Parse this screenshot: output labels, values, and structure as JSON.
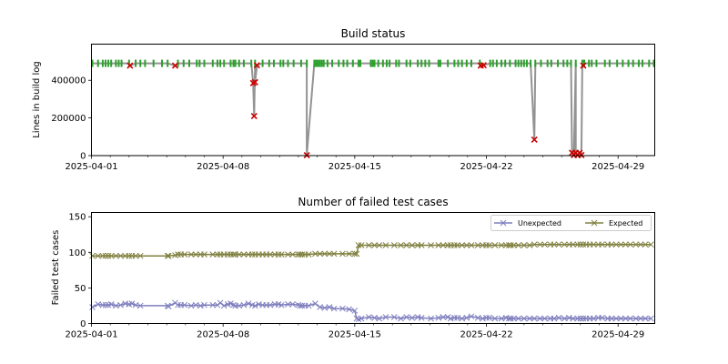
{
  "chart_data": [
    {
      "type": "line",
      "title": "Build status",
      "xlabel": "",
      "ylabel": "Lines in build log",
      "xlim_days_from_start": [
        0,
        29.95
      ],
      "ylim": [
        0,
        592000
      ],
      "start_date": "2025-04-01",
      "x_tick_labels": [
        "2025-04-01",
        "2025-04-08",
        "2025-04-15",
        "2025-04-22",
        "2025-04-29"
      ],
      "x_tick_days": [
        0,
        7,
        14,
        21,
        28
      ],
      "y_tick_labels": [
        "0",
        "200000",
        "400000"
      ],
      "y_tick_values": [
        0,
        200000,
        400000
      ],
      "baseline_lines": 490000,
      "colors": {
        "line": "#808080",
        "success": "#2ca02c",
        "failure": "#cc0000"
      },
      "success_days": [
        0.05,
        0.35,
        0.6,
        0.75,
        0.9,
        1.05,
        1.3,
        1.45,
        1.6,
        2.0,
        2.35,
        2.6,
        2.85,
        3.3,
        3.75,
        4.05,
        4.6,
        4.9,
        5.2,
        5.6,
        5.75,
        6.0,
        6.45,
        6.7,
        6.85,
        7.05,
        7.4,
        7.55,
        7.65,
        7.85,
        8.1,
        8.5,
        8.7,
        9.1,
        9.45,
        9.7,
        10.05,
        10.2,
        10.45,
        10.75,
        11.15,
        11.45,
        11.85,
        11.95,
        12.05,
        12.15,
        12.25,
        12.35,
        12.55,
        12.8,
        13.15,
        13.4,
        13.6,
        13.9,
        14.2,
        14.3,
        14.85,
        14.95,
        15.05,
        15.25,
        15.5,
        15.7,
        15.85,
        16.2,
        16.35,
        16.75,
        16.95,
        17.35,
        17.55,
        17.75,
        17.95,
        18.45,
        18.55,
        18.95,
        19.3,
        19.5,
        19.7,
        19.95,
        20.2,
        20.65,
        21.2,
        21.35,
        21.55,
        21.8,
        22.0,
        22.25,
        22.55,
        22.7,
        22.85,
        23.0,
        23.15,
        23.35,
        23.6,
        23.9,
        24.25,
        24.45,
        24.8,
        25.1,
        25.3,
        25.5,
        25.75,
        26.1,
        26.2,
        26.45,
        26.6,
        26.85,
        27.3,
        27.55,
        27.95,
        28.25,
        28.55,
        28.8,
        29.1,
        29.3,
        29.65,
        29.9
      ],
      "failures": [
        {
          "day": 2.05,
          "lines": 478000
        },
        {
          "day": 4.45,
          "lines": 478000
        },
        {
          "day": 8.6,
          "lines": 385000
        },
        {
          "day": 8.65,
          "lines": 210000
        },
        {
          "day": 8.7,
          "lines": 390000
        },
        {
          "day": 8.8,
          "lines": 480000
        },
        {
          "day": 11.45,
          "lines": 2000
        },
        {
          "day": 20.7,
          "lines": 478000
        },
        {
          "day": 20.85,
          "lines": 480000
        },
        {
          "day": 23.55,
          "lines": 85000
        },
        {
          "day": 25.55,
          "lines": 15000
        },
        {
          "day": 25.65,
          "lines": 3000
        },
        {
          "day": 25.75,
          "lines": 15000
        },
        {
          "day": 25.85,
          "lines": 3000
        },
        {
          "day": 25.95,
          "lines": 15000
        },
        {
          "day": 26.05,
          "lines": 3000
        },
        {
          "day": 26.15,
          "lines": 478000
        }
      ]
    },
    {
      "type": "line",
      "title": "Number of failed test cases",
      "xlabel": "",
      "ylabel": "Failed test cases",
      "xlim_days_from_start": [
        0,
        29.95
      ],
      "ylim": [
        0,
        156
      ],
      "start_date": "2025-04-01",
      "x_tick_labels": [
        "2025-04-01",
        "2025-04-08",
        "2025-04-15",
        "2025-04-22",
        "2025-04-29"
      ],
      "x_tick_days": [
        0,
        7,
        14,
        21,
        28
      ],
      "y_tick_labels": [
        "0",
        "50",
        "100",
        "150"
      ],
      "y_tick_values": [
        0,
        50,
        100,
        150
      ],
      "legend_position": "top-right",
      "series": [
        {
          "name": "Unexpected",
          "color": "#7f7fbf",
          "x": [
            0.05,
            0.35,
            0.6,
            0.75,
            0.9,
            1.05,
            1.3,
            1.55,
            1.8,
            2.0,
            2.15,
            2.35,
            2.6,
            4.05,
            4.1,
            4.45,
            4.6,
            4.75,
            4.95,
            5.3,
            5.55,
            5.8,
            6.0,
            6.45,
            6.7,
            6.85,
            7.05,
            7.25,
            7.4,
            7.55,
            7.65,
            7.85,
            8.1,
            8.35,
            8.55,
            8.7,
            8.9,
            9.1,
            9.3,
            9.5,
            9.75,
            9.95,
            10.1,
            10.45,
            10.7,
            11.0,
            11.1,
            11.2,
            11.35,
            11.55,
            11.9,
            12.15,
            12.4,
            12.65,
            12.9,
            13.35,
            13.7,
            14.0,
            14.1,
            14.2,
            14.35,
            14.75,
            15.05,
            15.3,
            15.65,
            16.1,
            16.45,
            16.75,
            17.05,
            17.35,
            17.55,
            18.05,
            18.45,
            18.7,
            18.95,
            19.1,
            19.3,
            19.45,
            19.7,
            19.95,
            20.2,
            20.55,
            20.8,
            21.0,
            21.15,
            21.45,
            21.8,
            22.05,
            22.2,
            22.3,
            22.45,
            22.7,
            23.0,
            23.3,
            23.55,
            23.85,
            24.1,
            24.4,
            24.6,
            24.85,
            25.15,
            25.4,
            25.6,
            25.85,
            26.0,
            26.15,
            26.3,
            26.5,
            26.7,
            26.95,
            27.15,
            27.45,
            27.65,
            27.9,
            28.15,
            28.4,
            28.65,
            28.95,
            29.2,
            29.45,
            29.75
          ],
          "y": [
            23,
            27,
            26,
            26,
            26,
            27,
            25,
            26,
            28,
            27,
            28,
            26,
            25,
            25,
            24,
            29,
            26,
            26,
            26,
            25,
            26,
            25,
            26,
            26,
            26,
            29,
            25,
            27,
            28,
            26,
            25,
            25,
            26,
            28,
            26,
            25,
            27,
            26,
            26,
            26,
            27,
            27,
            26,
            27,
            27,
            26,
            25,
            25,
            25,
            25,
            28,
            23,
            22,
            23,
            21,
            21,
            20,
            18,
            7,
            6,
            7,
            9,
            8,
            7,
            9,
            9,
            7,
            9,
            8,
            9,
            8,
            7,
            8,
            9,
            9,
            7,
            8,
            8,
            7,
            8,
            10,
            8,
            7,
            8,
            8,
            7,
            7,
            8,
            7,
            7,
            7,
            7,
            7,
            7,
            7,
            7,
            7,
            7,
            7,
            8,
            7,
            8,
            7,
            7,
            7,
            7,
            7,
            7,
            7,
            8,
            8,
            7,
            7,
            7,
            7,
            7,
            7,
            7,
            7,
            7,
            7
          ],
          "marker": "x"
        },
        {
          "name": "Expected",
          "color": "#808040",
          "x": [
            0.05,
            0.35,
            0.6,
            0.75,
            0.9,
            1.05,
            1.3,
            1.55,
            1.8,
            2.0,
            2.15,
            2.35,
            2.6,
            4.05,
            4.1,
            4.45,
            4.6,
            4.75,
            4.95,
            5.3,
            5.55,
            5.8,
            6.0,
            6.45,
            6.7,
            6.85,
            7.05,
            7.25,
            7.4,
            7.55,
            7.65,
            7.85,
            8.1,
            8.35,
            8.55,
            8.7,
            8.9,
            9.1,
            9.3,
            9.5,
            9.75,
            9.95,
            10.1,
            10.45,
            10.7,
            11.0,
            11.1,
            11.2,
            11.35,
            11.55,
            11.9,
            12.15,
            12.4,
            12.65,
            12.9,
            13.35,
            13.7,
            14.0,
            14.1,
            14.2,
            14.35,
            14.75,
            15.05,
            15.3,
            15.65,
            16.1,
            16.45,
            16.75,
            17.05,
            17.35,
            17.55,
            18.05,
            18.45,
            18.7,
            18.95,
            19.1,
            19.3,
            19.45,
            19.7,
            19.95,
            20.2,
            20.55,
            20.8,
            21.0,
            21.15,
            21.45,
            21.8,
            22.05,
            22.2,
            22.3,
            22.45,
            22.7,
            23.0,
            23.3,
            23.55,
            23.85,
            24.1,
            24.4,
            24.6,
            24.85,
            25.15,
            25.4,
            25.6,
            25.85,
            26.0,
            26.15,
            26.3,
            26.5,
            26.7,
            26.95,
            27.15,
            27.45,
            27.65,
            27.9,
            28.15,
            28.4,
            28.65,
            28.95,
            29.2,
            29.45,
            29.75
          ],
          "y": [
            95,
            95,
            95,
            95,
            95,
            95,
            95,
            95,
            95,
            95,
            95,
            95,
            95,
            95,
            95,
            96,
            97,
            97,
            97,
            97,
            97,
            97,
            97,
            97,
            97,
            97,
            97,
            97,
            97,
            97,
            97,
            97,
            97,
            97,
            97,
            97,
            97,
            97,
            97,
            97,
            97,
            97,
            97,
            97,
            97,
            97,
            97,
            97,
            97,
            97,
            98,
            98,
            98,
            98,
            98,
            98,
            98,
            98,
            98,
            110,
            110,
            110,
            110,
            110,
            110,
            110,
            110,
            110,
            110,
            110,
            110,
            110,
            110,
            110,
            110,
            110,
            110,
            110,
            110,
            110,
            110,
            110,
            110,
            110,
            110,
            110,
            110,
            110,
            110,
            110,
            110,
            110,
            110,
            110,
            111,
            111,
            111,
            111,
            111,
            111,
            111,
            111,
            111,
            111,
            111,
            111,
            111,
            111,
            111,
            111,
            111,
            111,
            111,
            111,
            111,
            111,
            111,
            111,
            111,
            111,
            111
          ],
          "marker": "x"
        }
      ]
    }
  ]
}
